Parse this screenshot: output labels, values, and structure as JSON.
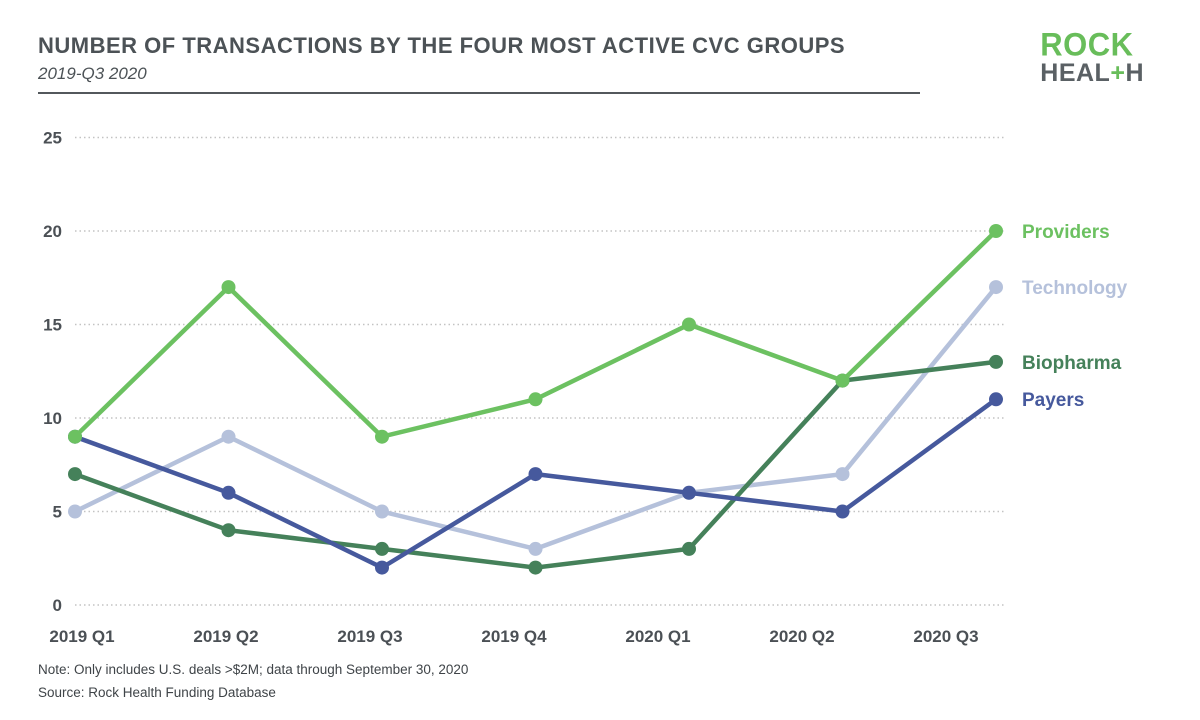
{
  "header": {
    "title": "NUMBER OF TRANSACTIONS BY THE FOUR MOST ACTIVE CVC GROUPS",
    "subtitle": "2019-Q3 2020"
  },
  "logo": {
    "top": "ROCK",
    "bottom_left": "HEAL",
    "bottom_plus": "+",
    "bottom_right": "H",
    "green": "#68bd5a",
    "gray": "#5a6064"
  },
  "chart_data": {
    "type": "line",
    "title": "NUMBER OF TRANSACTIONS BY THE FOUR MOST ACTIVE CVC GROUPS",
    "subtitle": "2019-Q3 2020",
    "categories": [
      "2019 Q1",
      "2019 Q2",
      "2019 Q3",
      "2019 Q4",
      "2020 Q1",
      "2020 Q2",
      "2020 Q3"
    ],
    "series": [
      {
        "name": "Technology",
        "color": "#b5c1db",
        "values": [
          5,
          9,
          5,
          3,
          6,
          7,
          17
        ]
      },
      {
        "name": "Biopharma",
        "color": "#45815a",
        "values": [
          7,
          4,
          3,
          2,
          3,
          12,
          13
        ]
      },
      {
        "name": "Payers",
        "color": "#46599d",
        "values": [
          9,
          6,
          2,
          7,
          6,
          5,
          11
        ]
      },
      {
        "name": "Providers",
        "color": "#6cc161",
        "values": [
          9,
          17,
          9,
          11,
          15,
          12,
          20
        ]
      }
    ],
    "yticks": [
      0,
      5,
      10,
      15,
      20,
      25
    ],
    "ylim": [
      0,
      25
    ],
    "grid": "horizontal-dotted",
    "legend_position": "right-of-last-points"
  },
  "footer": {
    "note": "Note: Only includes U.S. deals >$2M; data through September 30, 2020",
    "source": "Source: Rock Health Funding Database"
  }
}
